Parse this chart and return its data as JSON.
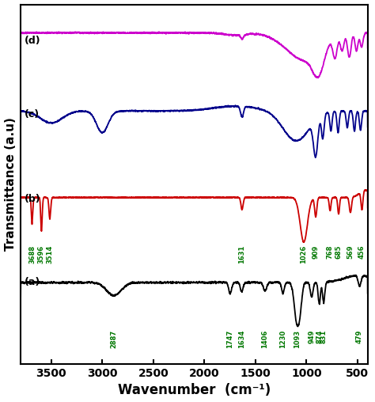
{
  "xlabel": "Wavenumber  (cm⁻¹)",
  "ylabel": "Transmittance (a.u)",
  "background_color": "#ffffff",
  "colors": {
    "a": "#000000",
    "b": "#cc0000",
    "c": "#00008B",
    "d": "#cc00cc"
  },
  "green": "#007700",
  "labels_a": [
    "2887",
    "1747",
    "1634",
    "1406",
    "1230",
    "1093",
    "949",
    "874",
    "831",
    "479"
  ],
  "labels_a_wn": [
    2887,
    1747,
    1634,
    1406,
    1230,
    1093,
    949,
    874,
    831,
    479
  ],
  "labels_b": [
    "3688",
    "3596",
    "3514",
    "1631",
    "1026",
    "909",
    "768",
    "685",
    "569",
    "456"
  ],
  "labels_b_wn": [
    3688,
    3596,
    3514,
    1631,
    1026,
    909,
    768,
    685,
    569,
    456
  ],
  "xtick_positions": [
    500,
    1000,
    1500,
    2000,
    2500,
    3000,
    3500
  ],
  "off_a": 0.0,
  "off_b": 1.6,
  "off_c": 3.2,
  "off_d": 4.7
}
